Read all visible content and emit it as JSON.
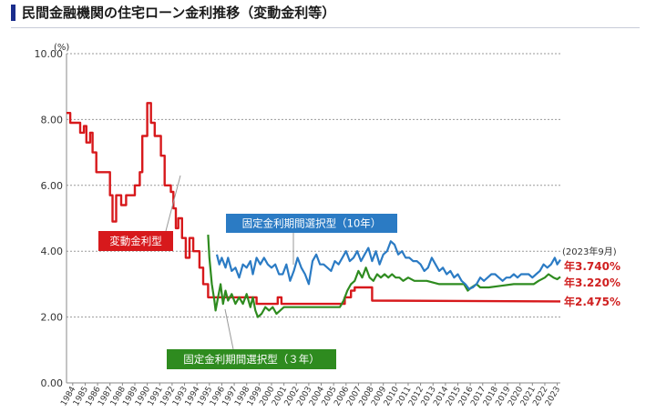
{
  "title": "民間金融機関の住宅ローン金利推移（変動金利等）",
  "colors": {
    "accent": "#1a2d8c",
    "variable": "#d7191c",
    "fixed10": "#2b7bc4",
    "fixed3": "#2e8b1f"
  },
  "chart_data": {
    "type": "line",
    "unit_label": "(%)",
    "ylim": [
      0,
      10
    ],
    "yticks": [
      "0.00",
      "2.00",
      "4.00",
      "6.00",
      "8.00",
      "10.00"
    ],
    "xlim": [
      1984,
      2023.75
    ],
    "xticks": [
      "1984",
      "1985",
      "1986",
      "1987",
      "1988",
      "1989",
      "1990",
      "1991",
      "1992",
      "1993",
      "1994",
      "1995",
      "1996",
      "1997",
      "1998",
      "1999",
      "2000",
      "2001",
      "2002",
      "2003",
      "2004",
      "2005",
      "2006",
      "2007",
      "2008",
      "2009",
      "2010",
      "2011",
      "2012",
      "2013",
      "2014",
      "2015",
      "2016",
      "2017",
      "2018",
      "2019",
      "2020",
      "2021",
      "2022",
      "2023"
    ],
    "grid": "horizontal",
    "note": "(2023年9月)",
    "series": [
      {
        "key": "variable",
        "name": "変動金利型",
        "end_label": "年2.475%",
        "points": [
          [
            1984,
            8.2
          ],
          [
            1984.3,
            8.2
          ],
          [
            1984.3,
            7.9
          ],
          [
            1985.1,
            7.9
          ],
          [
            1985.1,
            7.6
          ],
          [
            1985.4,
            7.6
          ],
          [
            1985.4,
            7.8
          ],
          [
            1985.6,
            7.8
          ],
          [
            1985.6,
            7.3
          ],
          [
            1985.9,
            7.3
          ],
          [
            1985.9,
            7.6
          ],
          [
            1986.1,
            7.6
          ],
          [
            1986.1,
            7.0
          ],
          [
            1986.4,
            7.0
          ],
          [
            1986.4,
            6.4
          ],
          [
            1987.5,
            6.4
          ],
          [
            1987.5,
            5.7
          ],
          [
            1987.7,
            5.7
          ],
          [
            1987.7,
            4.9
          ],
          [
            1988.0,
            4.9
          ],
          [
            1988.0,
            5.7
          ],
          [
            1988.4,
            5.7
          ],
          [
            1988.4,
            5.4
          ],
          [
            1988.8,
            5.4
          ],
          [
            1988.8,
            5.7
          ],
          [
            1989.5,
            5.7
          ],
          [
            1989.5,
            6.0
          ],
          [
            1989.9,
            6.0
          ],
          [
            1989.9,
            6.4
          ],
          [
            1990.1,
            6.4
          ],
          [
            1990.1,
            7.5
          ],
          [
            1990.5,
            7.5
          ],
          [
            1990.5,
            8.5
          ],
          [
            1990.8,
            8.5
          ],
          [
            1990.8,
            7.9
          ],
          [
            1991.1,
            7.9
          ],
          [
            1991.1,
            7.5
          ],
          [
            1991.6,
            7.5
          ],
          [
            1991.6,
            6.9
          ],
          [
            1991.9,
            6.9
          ],
          [
            1991.9,
            6.0
          ],
          [
            1992.4,
            6.0
          ],
          [
            1992.4,
            5.8
          ],
          [
            1992.6,
            5.8
          ],
          [
            1992.6,
            5.3
          ],
          [
            1992.8,
            5.3
          ],
          [
            1992.8,
            4.7
          ],
          [
            1993.0,
            4.7
          ],
          [
            1993.0,
            5.0
          ],
          [
            1993.3,
            5.0
          ],
          [
            1993.3,
            4.4
          ],
          [
            1993.6,
            4.4
          ],
          [
            1993.6,
            3.8
          ],
          [
            1993.9,
            3.8
          ],
          [
            1993.9,
            4.4
          ],
          [
            1994.2,
            4.4
          ],
          [
            1994.2,
            4.0
          ],
          [
            1994.7,
            4.0
          ],
          [
            1994.7,
            3.5
          ],
          [
            1995.0,
            3.5
          ],
          [
            1995.0,
            3.0
          ],
          [
            1995.4,
            3.0
          ],
          [
            1995.4,
            2.6
          ],
          [
            1999.3,
            2.6
          ],
          [
            1999.3,
            2.4
          ],
          [
            2001.0,
            2.4
          ],
          [
            2001.0,
            2.6
          ],
          [
            2001.3,
            2.6
          ],
          [
            2001.3,
            2.4
          ],
          [
            2006.4,
            2.4
          ],
          [
            2006.4,
            2.6
          ],
          [
            2006.9,
            2.6
          ],
          [
            2006.9,
            2.8
          ],
          [
            2007.2,
            2.8
          ],
          [
            2007.2,
            2.9
          ],
          [
            2008.6,
            2.9
          ],
          [
            2008.6,
            2.5
          ],
          [
            2023.75,
            2.475
          ]
        ]
      },
      {
        "key": "fixed10",
        "name": "固定金利期間選択型（10年）",
        "end_label": "年3.740%",
        "points": [
          [
            1996.1,
            3.9
          ],
          [
            1996.3,
            3.6
          ],
          [
            1996.5,
            3.8
          ],
          [
            1996.8,
            3.5
          ],
          [
            1997.0,
            3.8
          ],
          [
            1997.3,
            3.4
          ],
          [
            1997.6,
            3.5
          ],
          [
            1997.9,
            3.2
          ],
          [
            1998.2,
            3.6
          ],
          [
            1998.5,
            3.5
          ],
          [
            1998.8,
            3.7
          ],
          [
            1999.0,
            3.3
          ],
          [
            1999.3,
            3.8
          ],
          [
            1999.6,
            3.6
          ],
          [
            1999.9,
            3.8
          ],
          [
            2000.2,
            3.6
          ],
          [
            2000.5,
            3.5
          ],
          [
            2000.8,
            3.6
          ],
          [
            2001.1,
            3.3
          ],
          [
            2001.4,
            3.3
          ],
          [
            2001.7,
            3.6
          ],
          [
            2002.0,
            3.1
          ],
          [
            2002.3,
            3.4
          ],
          [
            2002.6,
            3.8
          ],
          [
            2002.9,
            3.5
          ],
          [
            2003.2,
            3.3
          ],
          [
            2003.5,
            3.0
          ],
          [
            2003.8,
            3.7
          ],
          [
            2004.1,
            3.9
          ],
          [
            2004.4,
            3.6
          ],
          [
            2004.7,
            3.6
          ],
          [
            2005.0,
            3.5
          ],
          [
            2005.3,
            3.4
          ],
          [
            2005.6,
            3.7
          ],
          [
            2005.9,
            3.6
          ],
          [
            2006.2,
            3.8
          ],
          [
            2006.5,
            4.0
          ],
          [
            2006.8,
            3.7
          ],
          [
            2007.1,
            3.8
          ],
          [
            2007.4,
            4.0
          ],
          [
            2007.7,
            3.7
          ],
          [
            2008.0,
            3.9
          ],
          [
            2008.3,
            4.1
          ],
          [
            2008.6,
            3.7
          ],
          [
            2008.9,
            4.0
          ],
          [
            2009.2,
            3.6
          ],
          [
            2009.5,
            3.9
          ],
          [
            2009.8,
            4.0
          ],
          [
            2010.1,
            4.3
          ],
          [
            2010.4,
            4.2
          ],
          [
            2010.7,
            3.9
          ],
          [
            2011.0,
            4.0
          ],
          [
            2011.3,
            3.8
          ],
          [
            2011.6,
            3.8
          ],
          [
            2011.9,
            3.7
          ],
          [
            2012.2,
            3.7
          ],
          [
            2012.5,
            3.6
          ],
          [
            2012.8,
            3.4
          ],
          [
            2013.1,
            3.5
          ],
          [
            2013.4,
            3.8
          ],
          [
            2013.7,
            3.6
          ],
          [
            2014.0,
            3.4
          ],
          [
            2014.3,
            3.5
          ],
          [
            2014.6,
            3.3
          ],
          [
            2014.9,
            3.4
          ],
          [
            2015.2,
            3.2
          ],
          [
            2015.5,
            3.3
          ],
          [
            2015.8,
            3.1
          ],
          [
            2016.1,
            3.0
          ],
          [
            2016.4,
            2.85
          ],
          [
            2016.7,
            2.9
          ],
          [
            2017.0,
            3.0
          ],
          [
            2017.3,
            3.2
          ],
          [
            2017.6,
            3.1
          ],
          [
            2017.9,
            3.2
          ],
          [
            2018.2,
            3.3
          ],
          [
            2018.5,
            3.3
          ],
          [
            2018.8,
            3.2
          ],
          [
            2019.1,
            3.1
          ],
          [
            2019.4,
            3.2
          ],
          [
            2019.7,
            3.2
          ],
          [
            2020.0,
            3.3
          ],
          [
            2020.3,
            3.2
          ],
          [
            2020.6,
            3.3
          ],
          [
            2020.9,
            3.3
          ],
          [
            2021.2,
            3.3
          ],
          [
            2021.5,
            3.2
          ],
          [
            2021.8,
            3.3
          ],
          [
            2022.1,
            3.4
          ],
          [
            2022.4,
            3.6
          ],
          [
            2022.7,
            3.5
          ],
          [
            2023.0,
            3.6
          ],
          [
            2023.3,
            3.8
          ],
          [
            2023.5,
            3.6
          ],
          [
            2023.75,
            3.74
          ]
        ]
      },
      {
        "key": "fixed3",
        "name": "固定金利期間選択型（３年）",
        "end_label": "年3.220%",
        "points": [
          [
            1995.4,
            4.5
          ],
          [
            1995.5,
            3.8
          ],
          [
            1995.7,
            3.0
          ],
          [
            1995.9,
            2.5
          ],
          [
            1996.0,
            2.2
          ],
          [
            1996.2,
            2.6
          ],
          [
            1996.4,
            3.0
          ],
          [
            1996.6,
            2.4
          ],
          [
            1996.8,
            2.8
          ],
          [
            1997.0,
            2.5
          ],
          [
            1997.3,
            2.7
          ],
          [
            1997.6,
            2.4
          ],
          [
            1997.9,
            2.6
          ],
          [
            1998.2,
            2.4
          ],
          [
            1998.5,
            2.7
          ],
          [
            1998.8,
            2.3
          ],
          [
            1999.0,
            2.6
          ],
          [
            1999.2,
            2.2
          ],
          [
            1999.4,
            2.0
          ],
          [
            1999.7,
            2.1
          ],
          [
            2000.0,
            2.3
          ],
          [
            2000.3,
            2.2
          ],
          [
            2000.6,
            2.3
          ],
          [
            2000.9,
            2.1
          ],
          [
            2001.2,
            2.2
          ],
          [
            2001.5,
            2.3
          ],
          [
            2001.8,
            2.3
          ],
          [
            2002.5,
            2.3
          ],
          [
            2004.0,
            2.3
          ],
          [
            2005.0,
            2.3
          ],
          [
            2006.0,
            2.3
          ],
          [
            2006.3,
            2.5
          ],
          [
            2006.6,
            2.8
          ],
          [
            2006.9,
            3.0
          ],
          [
            2007.2,
            3.1
          ],
          [
            2007.5,
            3.4
          ],
          [
            2007.8,
            3.2
          ],
          [
            2008.1,
            3.5
          ],
          [
            2008.4,
            3.2
          ],
          [
            2008.7,
            3.1
          ],
          [
            2009.0,
            3.3
          ],
          [
            2009.3,
            3.2
          ],
          [
            2009.6,
            3.3
          ],
          [
            2009.9,
            3.2
          ],
          [
            2010.2,
            3.3
          ],
          [
            2010.5,
            3.2
          ],
          [
            2010.8,
            3.2
          ],
          [
            2011.1,
            3.1
          ],
          [
            2011.5,
            3.2
          ],
          [
            2012.0,
            3.1
          ],
          [
            2012.5,
            3.1
          ],
          [
            2013.0,
            3.1
          ],
          [
            2014.0,
            3.0
          ],
          [
            2015.0,
            3.0
          ],
          [
            2016.0,
            3.0
          ],
          [
            2016.3,
            2.8
          ],
          [
            2016.6,
            2.9
          ],
          [
            2017.0,
            3.0
          ],
          [
            2017.3,
            2.9
          ],
          [
            2017.6,
            2.9
          ],
          [
            2018.0,
            2.9
          ],
          [
            2019.0,
            2.95
          ],
          [
            2020.0,
            3.0
          ],
          [
            2021.0,
            3.0
          ],
          [
            2021.6,
            3.0
          ],
          [
            2022.0,
            3.1
          ],
          [
            2022.5,
            3.2
          ],
          [
            2022.8,
            3.3
          ],
          [
            2023.2,
            3.2
          ],
          [
            2023.5,
            3.15
          ],
          [
            2023.75,
            3.22
          ]
        ]
      }
    ]
  }
}
